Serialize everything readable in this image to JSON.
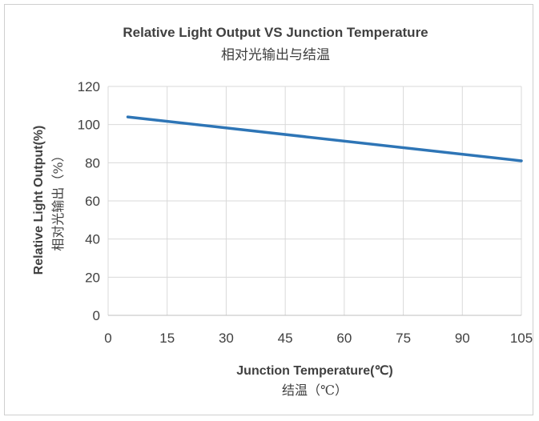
{
  "chart_data": {
    "type": "line",
    "title": "Relative Light Output VS Junction Temperature",
    "subtitle": "相对光输出与结温",
    "xlabel": "Junction Temperature(℃)",
    "xlabel_cn": "结温（℃）",
    "ylabel": "Relative Light Output(%)",
    "ylabel_cn": "相对光输出（%）",
    "xlim": [
      0,
      105
    ],
    "ylim": [
      0,
      120
    ],
    "x_ticks": [
      "0",
      "15",
      "30",
      "45",
      "60",
      "75",
      "90",
      "105"
    ],
    "y_ticks": [
      "0",
      "20",
      "40",
      "60",
      "80",
      "100",
      "120"
    ],
    "grid": true,
    "legend": "none",
    "series": [
      {
        "color": "#2e75b6",
        "x": [
          5,
          105
        ],
        "y": [
          104,
          81
        ]
      }
    ]
  }
}
